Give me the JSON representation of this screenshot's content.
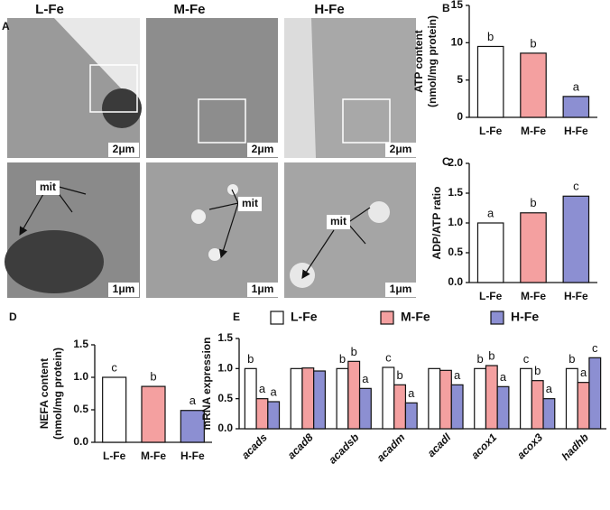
{
  "panels": [
    "A",
    "B",
    "C",
    "D",
    "E"
  ],
  "panel_a": {
    "groups": [
      "L-Fe",
      "M-Fe",
      "H-Fe"
    ],
    "scale_top": "2μm",
    "scale_bottom": "1μm",
    "mit": "mit"
  },
  "chart_data": [
    {
      "type": "bar",
      "ylabel": [
        "ATP content",
        "(nmol/mg protein)"
      ],
      "categories": [
        "L-Fe",
        "M-Fe",
        "H-Fe"
      ],
      "values": [
        9.5,
        8.6,
        2.8
      ],
      "colors": [
        "#ffffff",
        "#f4a0a0",
        "#8c8fd2"
      ],
      "annotations": [
        "b",
        "b",
        "a"
      ],
      "ylim": [
        0,
        15
      ],
      "yticks": [
        0,
        5,
        10,
        15
      ]
    },
    {
      "type": "bar",
      "ylabel": [
        "ADP/ATP ratio"
      ],
      "categories": [
        "L-Fe",
        "M-Fe",
        "H-Fe"
      ],
      "values": [
        1.0,
        1.17,
        1.45
      ],
      "colors": [
        "#ffffff",
        "#f4a0a0",
        "#8c8fd2"
      ],
      "annotations": [
        "a",
        "b",
        "c"
      ],
      "ylim": [
        0,
        2
      ],
      "yticks": [
        {
          "value": 0,
          "label": "0.0"
        },
        0.5,
        {
          "value": 1,
          "label": "1.0"
        },
        1.5,
        {
          "value": 2,
          "label": "2.0"
        }
      ]
    },
    {
      "type": "bar",
      "ylabel": [
        "NEFA content",
        "(nmol/mg protein)"
      ],
      "categories": [
        "L-Fe",
        "M-Fe",
        "H-Fe"
      ],
      "values": [
        1.0,
        0.86,
        0.49
      ],
      "colors": [
        "#ffffff",
        "#f4a0a0",
        "#8c8fd2"
      ],
      "annotations": [
        "c",
        "b",
        "a"
      ],
      "ylim": [
        0,
        1.5
      ],
      "yticks": [
        {
          "value": 0,
          "label": "0.0"
        },
        0.5,
        {
          "value": 1,
          "label": "1.0"
        },
        1.5
      ]
    },
    {
      "type": "grouped-bar",
      "ylabel": [
        "mRNA expression"
      ],
      "categories": [
        "acads",
        "acad8",
        "acadsb",
        "acadm",
        "acadl",
        "acox1",
        "acox3",
        "hadhb"
      ],
      "series": [
        {
          "name": "L-Fe",
          "color": "#ffffff",
          "values": [
            1.0,
            1.0,
            1.0,
            1.02,
            1.0,
            1.0,
            1.0,
            1.0
          ],
          "annotations": [
            "b",
            null,
            "b",
            "c",
            null,
            "b",
            "c",
            "b"
          ]
        },
        {
          "name": "M-Fe",
          "color": "#f4a0a0",
          "values": [
            0.5,
            1.01,
            1.12,
            0.73,
            0.97,
            1.05,
            0.8,
            0.77
          ],
          "annotations": [
            "a",
            null,
            "b",
            "b",
            null,
            "b",
            "b",
            "a"
          ]
        },
        {
          "name": "H-Fe",
          "color": "#8c8fd2",
          "values": [
            0.45,
            0.96,
            0.67,
            0.43,
            0.73,
            0.7,
            0.5,
            1.18
          ],
          "annotations": [
            "a",
            null,
            "a",
            "a",
            "a",
            "a",
            "a",
            "c"
          ]
        }
      ],
      "ylim": [
        0,
        1.5
      ],
      "yticks": [
        {
          "value": 0,
          "label": "0.0"
        },
        0.5,
        {
          "value": 1,
          "label": "1.0"
        },
        1.5
      ]
    }
  ]
}
